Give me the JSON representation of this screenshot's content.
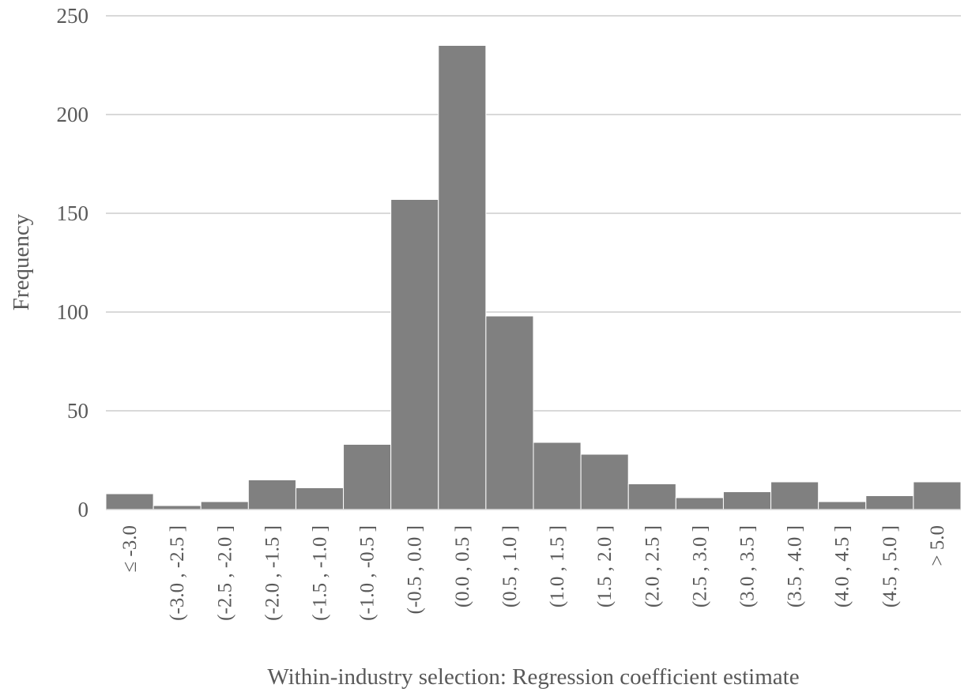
{
  "chart_data": {
    "type": "bar",
    "title": "",
    "xlabel": "Within-industry selection: Regression coefficient estimate",
    "ylabel": "Frequency",
    "ylim": [
      0,
      250
    ],
    "yticks": [
      "0",
      "50",
      "100",
      "150",
      "200",
      "250"
    ],
    "grid": true,
    "legend": "none",
    "bar_color": "#808080",
    "grid_color": "#d9d9d9",
    "categories": [
      "≤ -3.0",
      "(-3.0 , -2.5 ]",
      "(-2.5 , -2.0 ]",
      "(-2.0 , -1.5 ]",
      "(-1.5 , -1.0 ]",
      "(-1.0 , -0.5 ]",
      "(-0.5 , 0.0 ]",
      "(0.0 , 0.5 ]",
      "(0.5 , 1.0 ]",
      "(1.0 , 1.5 ]",
      "(1.5 , 2.0 ]",
      "(2.0 , 2.5 ]",
      "(2.5 , 3.0 ]",
      "(3.0 , 3.5 ]",
      "(3.5 , 4.0 ]",
      "(4.0 , 4.5 ]",
      "(4.5 , 5.0 ]",
      "> 5.0"
    ],
    "values": [
      8,
      2,
      4,
      15,
      11,
      33,
      157,
      235,
      98,
      34,
      28,
      13,
      6,
      9,
      14,
      4,
      7,
      14
    ]
  }
}
